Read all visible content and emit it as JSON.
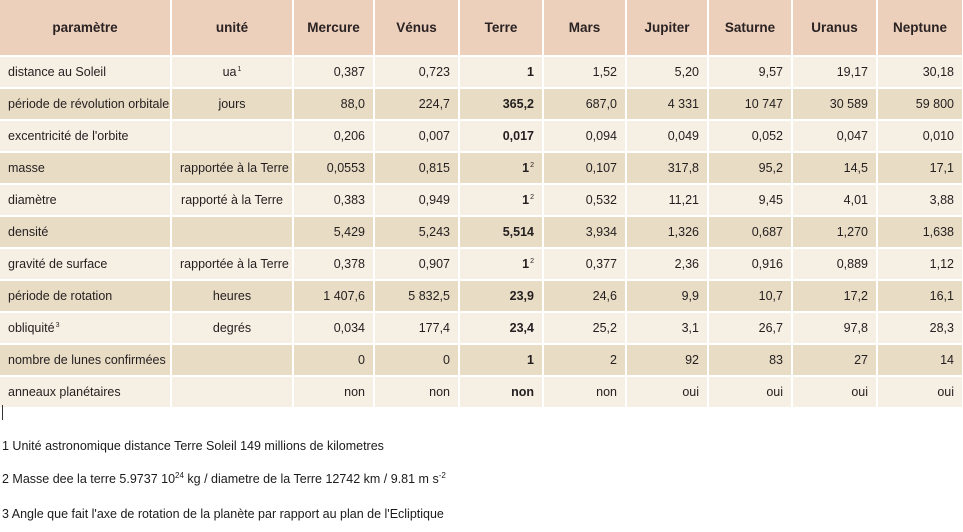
{
  "table": {
    "headers": [
      "paramètre",
      "unité",
      "Mercure",
      "Vénus",
      "Terre",
      "Mars",
      "Jupiter",
      "Saturne",
      "Uranus",
      "Neptune"
    ],
    "rows": [
      {
        "label": "distance au Soleil",
        "label_sup": "",
        "unit": "ua",
        "unit_sup": "1",
        "values": [
          "0,387",
          "0,723",
          "1",
          "1,52",
          "5,20",
          "9,57",
          "19,17",
          "30,18"
        ],
        "earth_sup": ""
      },
      {
        "label": "période de révolution orbitale",
        "label_sup": "",
        "unit": "jours",
        "unit_sup": "",
        "values": [
          "88,0",
          "224,7",
          "365,2",
          "687,0",
          "4 331",
          "10 747",
          "30 589",
          "59 800"
        ],
        "earth_sup": ""
      },
      {
        "label": "excentricité de l'orbite",
        "label_sup": "",
        "unit": "",
        "unit_sup": "",
        "values": [
          "0,206",
          "0,007",
          "0,017",
          "0,094",
          "0,049",
          "0,052",
          "0,047",
          "0,010"
        ],
        "earth_sup": ""
      },
      {
        "label": "masse",
        "label_sup": "",
        "unit": "rapportée à la Terre",
        "unit_sup": "",
        "values": [
          "0,0553",
          "0,815",
          "1",
          "0,107",
          "317,8",
          "95,2",
          "14,5",
          "17,1"
        ],
        "earth_sup": "2"
      },
      {
        "label": "diamètre",
        "label_sup": "",
        "unit": "rapporté à la Terre",
        "unit_sup": "",
        "values": [
          "0,383",
          "0,949",
          "1",
          "0,532",
          "11,21",
          "9,45",
          "4,01",
          "3,88"
        ],
        "earth_sup": "2"
      },
      {
        "label": "densité",
        "label_sup": "",
        "unit": "",
        "unit_sup": "",
        "values": [
          "5,429",
          "5,243",
          "5,514",
          "3,934",
          "1,326",
          "0,687",
          "1,270",
          "1,638"
        ],
        "earth_sup": ""
      },
      {
        "label": "gravité de surface",
        "label_sup": "",
        "unit": "rapportée à la Terre",
        "unit_sup": "",
        "values": [
          "0,378",
          "0,907",
          "1",
          "0,377",
          "2,36",
          "0,916",
          "0,889",
          "1,12"
        ],
        "earth_sup": "2"
      },
      {
        "label": "période de rotation",
        "label_sup": "",
        "unit": "heures",
        "unit_sup": "",
        "values": [
          "1 407,6",
          "5 832,5",
          "23,9",
          "24,6",
          "9,9",
          "10,7",
          "17,2",
          "16,1"
        ],
        "earth_sup": ""
      },
      {
        "label": "obliquité",
        "label_sup": "3",
        "unit": "degrés",
        "unit_sup": "",
        "values": [
          "0,034",
          "177,4",
          "23,4",
          "25,2",
          "3,1",
          "26,7",
          "97,8",
          "28,3"
        ],
        "earth_sup": ""
      },
      {
        "label": "nombre de lunes confirmées",
        "label_sup": "",
        "unit": "",
        "unit_sup": "",
        "values": [
          "0",
          "0",
          "1",
          "2",
          "92",
          "83",
          "27",
          "14"
        ],
        "earth_sup": ""
      },
      {
        "label": "anneaux planétaires",
        "label_sup": "",
        "unit": "",
        "unit_sup": "",
        "values": [
          "non",
          "non",
          "non",
          "non",
          "oui",
          "oui",
          "oui",
          "oui"
        ],
        "earth_sup": ""
      }
    ]
  },
  "notes": {
    "note1": "1 Unité astronomique  distance Terre Soleil 149 millions de kilometres",
    "note2_a": "2 Masse dee la terre 5.9737 10",
    "note2_sup1": "24",
    "note2_b": " kg / diametre de la Terre 12742 km / 9.81 m s",
    "note2_sup2": "-2",
    "note3": "3 Angle que fait l'axe de rotation de la planète par rapport au plan de l'Ecliptique"
  }
}
